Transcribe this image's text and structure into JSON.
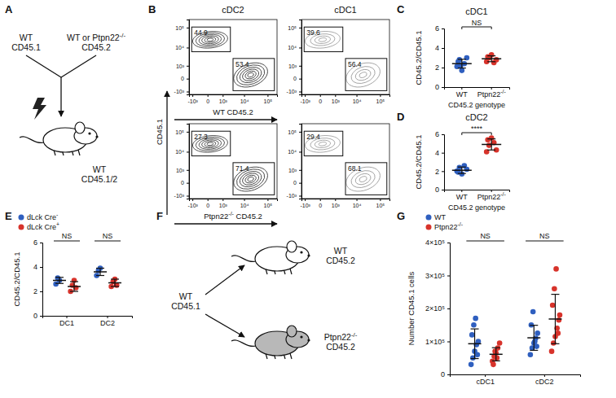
{
  "chart_data": [
    {
      "type": "diagram",
      "panel": "A",
      "nodes": [
        {
          "label": [
            "WT",
            "CD45.1"
          ]
        },
        {
          "label": [
            "WT or Ptpn22-/-",
            "CD45.2"
          ]
        },
        {
          "label": [
            "WT",
            "CD45.1/2"
          ]
        }
      ]
    },
    {
      "type": "flow",
      "panel": "B",
      "title": "cDC2",
      "xlabel": "WT CD45.2",
      "values": [
        44.9,
        53.4
      ],
      "data_labels": true,
      "log": true,
      "xlim": [
        -1500,
        250000
      ],
      "ylim": [
        -1500,
        250000
      ],
      "xticks": [
        {
          "value": -1000,
          "label": "-10³"
        },
        0,
        {
          "value": 1000,
          "label": "10³"
        },
        {
          "value": 10000,
          "label": "10⁴"
        },
        {
          "value": 100000,
          "label": "10⁵"
        }
      ],
      "yticks": [
        {
          "value": -1000,
          "label": "-10³"
        },
        0,
        {
          "value": 1000,
          "label": "10³"
        },
        {
          "value": 10000,
          "label": "10⁴"
        },
        {
          "value": 100000,
          "label": "10⁵"
        }
      ]
    },
    {
      "type": "flow",
      "title": "cDC1",
      "values": [
        39.6,
        56.4
      ],
      "data_labels": true,
      "log": true,
      "xlim": [
        -1500,
        250000
      ],
      "ylim": [
        -1500,
        250000
      ],
      "xticks": [
        {
          "value": -1000,
          "label": "-10³"
        },
        0,
        {
          "value": 1000,
          "label": "10³"
        },
        {
          "value": 10000,
          "label": "10⁴"
        },
        {
          "value": 100000,
          "label": "10⁵"
        }
      ],
      "yticks": [
        {
          "value": -1000,
          "label": "-10³"
        },
        0,
        {
          "value": 1000,
          "label": "10³"
        },
        {
          "value": 10000,
          "label": "10⁴"
        },
        {
          "value": 100000,
          "label": "10⁵"
        }
      ]
    },
    {
      "type": "flow",
      "xlabel": "Ptpn22-/- CD45.2",
      "ylabel": "CD45.1",
      "values": [
        27.3,
        71.4
      ],
      "data_labels": true,
      "log": true,
      "xlim": [
        -1500,
        250000
      ],
      "ylim": [
        -1500,
        250000
      ],
      "xticks": [
        {
          "value": -1000,
          "label": "-10³"
        },
        0,
        {
          "value": 1000,
          "label": "10³"
        },
        {
          "value": 10000,
          "label": "10⁴"
        },
        {
          "value": 100000,
          "label": "10⁵"
        }
      ],
      "yticks": [
        {
          "value": -1000,
          "label": "-10³"
        },
        0,
        {
          "value": 1000,
          "label": "10³"
        },
        {
          "value": 10000,
          "label": "10⁴"
        },
        {
          "value": 100000,
          "label": "10⁵"
        }
      ]
    },
    {
      "type": "flow",
      "values": [
        29.4,
        68.1
      ],
      "data_labels": true,
      "log": true,
      "xlim": [
        -1500,
        250000
      ],
      "ylim": [
        -1500,
        250000
      ],
      "xticks": [
        {
          "value": -1000,
          "label": "-10³"
        },
        0,
        {
          "value": 1000,
          "label": "10³"
        },
        {
          "value": 10000,
          "label": "10⁴"
        },
        {
          "value": 100000,
          "label": "10⁵"
        }
      ],
      "yticks": [
        {
          "value": -1000,
          "label": "-10³"
        },
        0,
        {
          "value": 1000,
          "label": "10³"
        },
        {
          "value": 10000,
          "label": "10⁴"
        },
        {
          "value": 100000,
          "label": "10⁵"
        }
      ]
    },
    {
      "type": "dot",
      "panel": "C",
      "title": "cDC1",
      "categories": [
        "WT",
        "Ptpn22-/-"
      ],
      "xlabel": "CD45.2 genotype",
      "ylabel": "CD45.2/CD45.1",
      "colors": [
        "#2f5fbf",
        "#d7332b"
      ],
      "values": [
        [
          2.1,
          2.8,
          1.7,
          2.4,
          3.0,
          2.6,
          2.2
        ],
        [
          2.6,
          3.0,
          3.3,
          2.5,
          2.8,
          3.1
        ]
      ],
      "means": [
        2.4,
        2.9
      ],
      "errors": [
        0.45,
        0.3
      ],
      "ylim": [
        0,
        6
      ],
      "yticks": [
        0,
        2,
        4,
        6
      ],
      "annotations": [
        "NS"
      ]
    },
    {
      "type": "dot",
      "panel": "D",
      "title": "cDC2",
      "categories": [
        "WT",
        "Ptpn22-/-"
      ],
      "xlabel": "CD45.2 genotype",
      "ylabel": "CD45.2/CD45.1",
      "colors": [
        "#2f5fbf",
        "#d7332b"
      ],
      "values": [
        [
          2.0,
          2.4,
          1.7,
          2.6,
          2.2,
          1.9
        ],
        [
          4.1,
          4.8,
          5.6,
          5.1,
          4.3,
          5.4
        ]
      ],
      "means": [
        2.1,
        4.9
      ],
      "errors": [
        0.35,
        0.6
      ],
      "ylim": [
        0,
        6
      ],
      "yticks": [
        0,
        2,
        4,
        6
      ],
      "annotations": [
        "****"
      ]
    },
    {
      "type": "dot",
      "panel": "E",
      "categories": [
        "DC1",
        "DC2"
      ],
      "ylabel": "CD45.2/CD45.1",
      "legend": "top-left",
      "series": [
        {
          "name": "dLck Cre-",
          "color": "#2f5fbf",
          "values": [
            [
              2.6,
              3.1,
              2.9
            ],
            [
              3.3,
              3.7,
              3.9
            ]
          ],
          "means": [
            2.9,
            3.6
          ],
          "errors": [
            0.25,
            0.3
          ]
        },
        {
          "name": "dLck Cre+",
          "color": "#d7332b",
          "values": [
            [
              2.0,
              2.5,
              2.9,
              2.3
            ],
            [
              2.4,
              2.8,
              3.0,
              2.5
            ]
          ],
          "means": [
            2.4,
            2.7
          ],
          "errors": [
            0.4,
            0.3
          ]
        }
      ],
      "ylim": [
        0,
        6
      ],
      "yticks": [
        0,
        2,
        4,
        6
      ],
      "annotations": [
        "NS",
        "NS"
      ]
    },
    {
      "type": "diagram",
      "panel": "F",
      "nodes": [
        {
          "label": [
            "WT",
            "CD45.1"
          ]
        },
        {
          "label": [
            "WT",
            "CD45.2"
          ]
        },
        {
          "label": [
            "Ptpn22-/-",
            "CD45.2"
          ]
        }
      ]
    },
    {
      "type": "dot",
      "panel": "G",
      "categories": [
        "cDC1",
        "cDC2"
      ],
      "ylabel": "Number CD45.1 cells",
      "legend": "top-left",
      "series": [
        {
          "name": "WT",
          "color": "#2f5fbf",
          "values": [
            [
              30000,
              50000,
              70000,
              90000,
              100000,
              120000,
              150000,
              170000,
              60000
            ],
            [
              60000,
              80000,
              95000,
              110000,
              125000,
              150000,
              190000,
              100000,
              85000
            ]
          ],
          "means": [
            93000,
            111000
          ],
          "errors": [
            45000,
            38000
          ]
        },
        {
          "name": "Ptpn22-/-",
          "color": "#d7332b",
          "values": [
            [
              40000,
              55000,
              65000,
              80000,
              95000,
              30000,
              70000,
              50000
            ],
            [
              70000,
              95000,
              115000,
              140000,
              165000,
              210000,
              260000,
              320000,
              125000,
              180000
            ]
          ],
          "means": [
            61000,
            168000
          ],
          "errors": [
            20000,
            75000
          ]
        }
      ],
      "ylim": [
        0,
        400000
      ],
      "yticks": [
        0,
        {
          "value": 100000,
          "label": "1×10⁵"
        },
        {
          "value": 200000,
          "label": "2×10⁵"
        },
        {
          "value": 300000,
          "label": "3×10⁵"
        },
        {
          "value": 400000,
          "label": "4×10⁵"
        }
      ],
      "annotations": [
        "NS",
        "NS"
      ]
    }
  ]
}
